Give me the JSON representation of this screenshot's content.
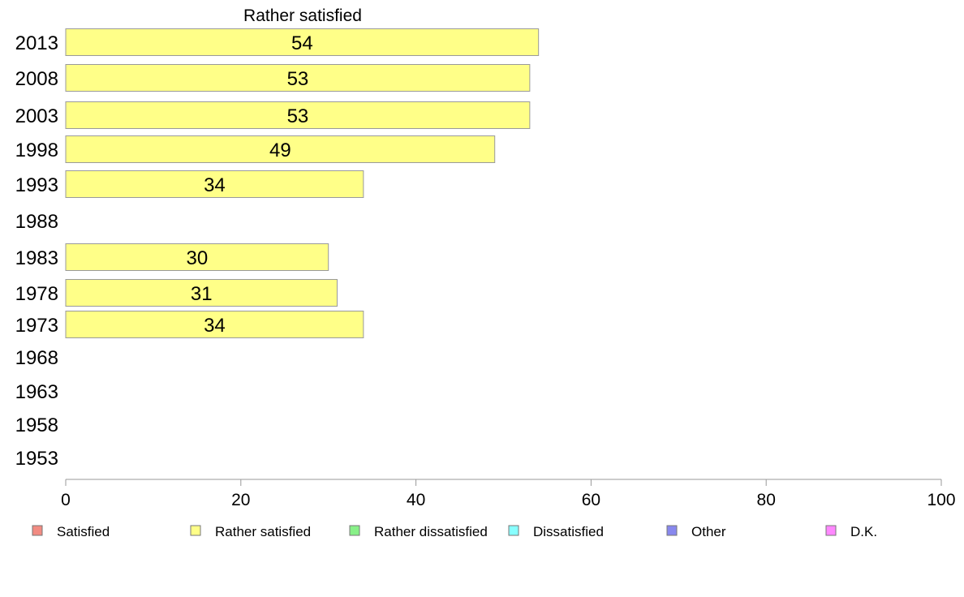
{
  "chart_data": {
    "type": "bar",
    "orientation": "horizontal",
    "title": "Rather satisfied",
    "categories": [
      "2013",
      "2008",
      "2003",
      "1998",
      "1993",
      "1988",
      "1983",
      "1978",
      "1973",
      "1968",
      "1963",
      "1958",
      "1953"
    ],
    "values": [
      54,
      53,
      53,
      49,
      34,
      null,
      30,
      31,
      34,
      null,
      null,
      null,
      null
    ],
    "value_labels": [
      "54",
      "53",
      "53",
      "49",
      "34",
      "",
      "30",
      "31",
      "34",
      "",
      "",
      "",
      ""
    ],
    "xlim": [
      0,
      100
    ],
    "xticks": [
      0,
      20,
      40,
      60,
      80,
      100
    ],
    "bar_color": "#ffff88",
    "grid": false,
    "legend_position": "bottom",
    "legend": [
      {
        "name": "Satisfied",
        "color": "#f28b82"
      },
      {
        "name": "Rather satisfied",
        "color": "#ffff88"
      },
      {
        "name": "Rather dissatisfied",
        "color": "#88f088"
      },
      {
        "name": "Dissatisfied",
        "color": "#88ffff"
      },
      {
        "name": "Other",
        "color": "#8888ee"
      },
      {
        "name": "D.K.",
        "color": "#ff88ff"
      }
    ]
  }
}
